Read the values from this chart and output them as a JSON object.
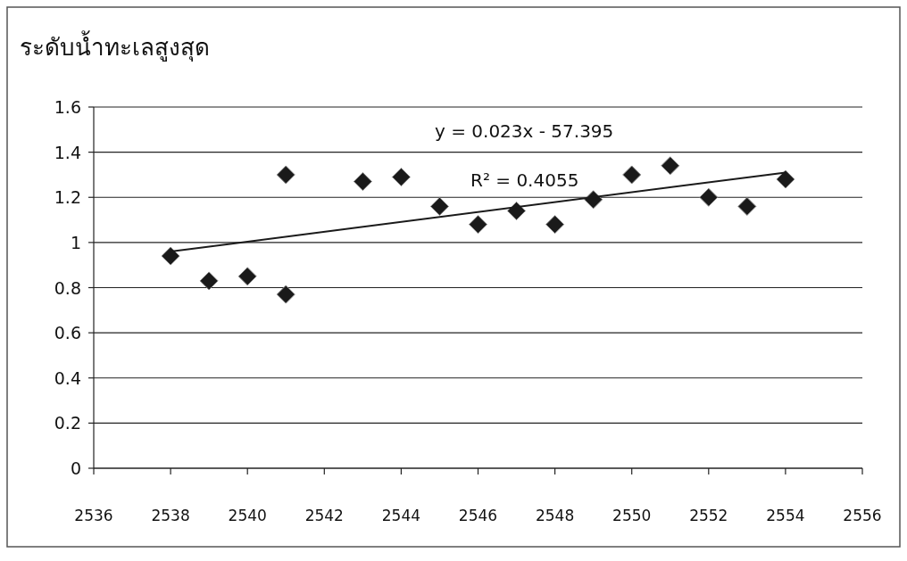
{
  "chart_data": {
    "type": "scatter",
    "title": "ระดับน้ำทะเลสูงสุด",
    "x": [
      2538,
      2539,
      2540,
      2541,
      2541,
      2543,
      2544,
      2545,
      2546,
      2547,
      2548,
      2549,
      2550,
      2551,
      2552,
      2553,
      2554
    ],
    "series": [
      {
        "color": "#1a1a1a",
        "marker": "diamond",
        "values": [
          0.94,
          0.83,
          0.85,
          1.3,
          0.77,
          1.27,
          1.29,
          1.16,
          1.08,
          1.14,
          1.08,
          1.19,
          1.3,
          1.34,
          1.2,
          1.16,
          1.28
        ]
      },
      {
        "type": "line",
        "color": "#1a1a1a",
        "x": [
          2538,
          2554
        ],
        "values": [
          0.96,
          1.31
        ]
      }
    ],
    "annotations": [
      "y = 0.023x - 57.395",
      "R² = 0.4055"
    ],
    "xlim": [
      2536,
      2556
    ],
    "xticks": [
      2536,
      2538,
      2540,
      2542,
      2544,
      2546,
      2548,
      2550,
      2552,
      2554,
      2556
    ],
    "ylim": [
      0,
      1.6
    ],
    "yticks": [
      0,
      0.2,
      0.4,
      0.6,
      0.8,
      1,
      1.2,
      1.4,
      1.6
    ],
    "grid": "y"
  }
}
